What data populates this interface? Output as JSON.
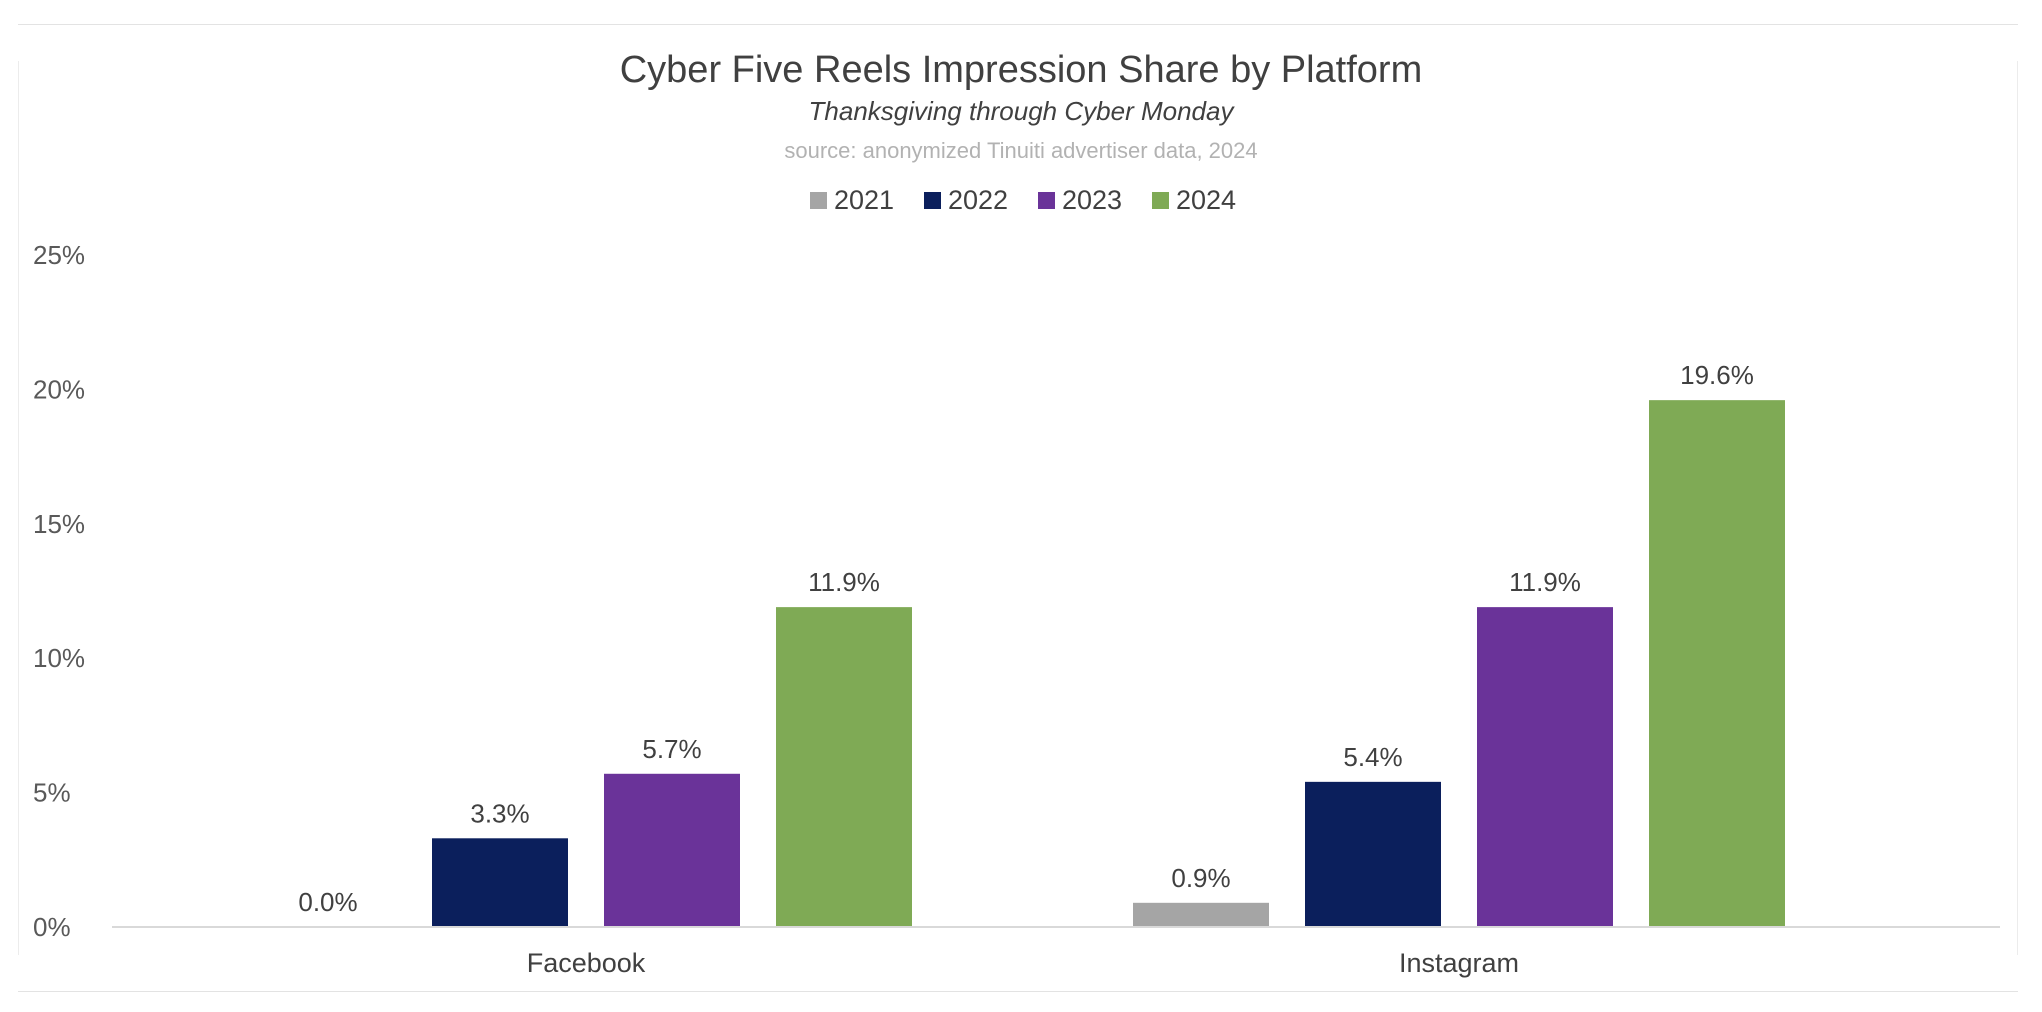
{
  "chart_data": {
    "type": "bar",
    "title": "Cyber Five Reels Impression Share by Platform",
    "subtitle": "Thanksgiving through Cyber Monday",
    "source": "source: anonymized Tinuiti advertiser data, 2024",
    "categories": [
      "Facebook",
      "Instagram"
    ],
    "series": [
      {
        "name": "2021",
        "color": "#a5a5a5",
        "values": [
          0.0,
          0.9
        ],
        "labels": [
          "0.0%",
          "0.9%"
        ]
      },
      {
        "name": "2022",
        "color": "#0b1f5c",
        "values": [
          3.3,
          5.4
        ],
        "labels": [
          "3.3%",
          "5.4%"
        ]
      },
      {
        "name": "2023",
        "color": "#6a3399",
        "values": [
          5.7,
          11.9
        ],
        "labels": [
          "5.7%",
          "11.9%"
        ]
      },
      {
        "name": "2024",
        "color": "#7faa55",
        "values": [
          11.9,
          19.6
        ],
        "labels": [
          "11.9%",
          "19.6%"
        ]
      }
    ],
    "y_ticks": [
      0,
      5,
      10,
      15,
      20,
      25
    ],
    "y_tick_labels": [
      "0%",
      "5%",
      "10%",
      "15%",
      "20%",
      "25%"
    ],
    "ylim": [
      0,
      25
    ],
    "xlabel": "",
    "ylabel": "",
    "grid": false,
    "legend_position": "top-center"
  }
}
